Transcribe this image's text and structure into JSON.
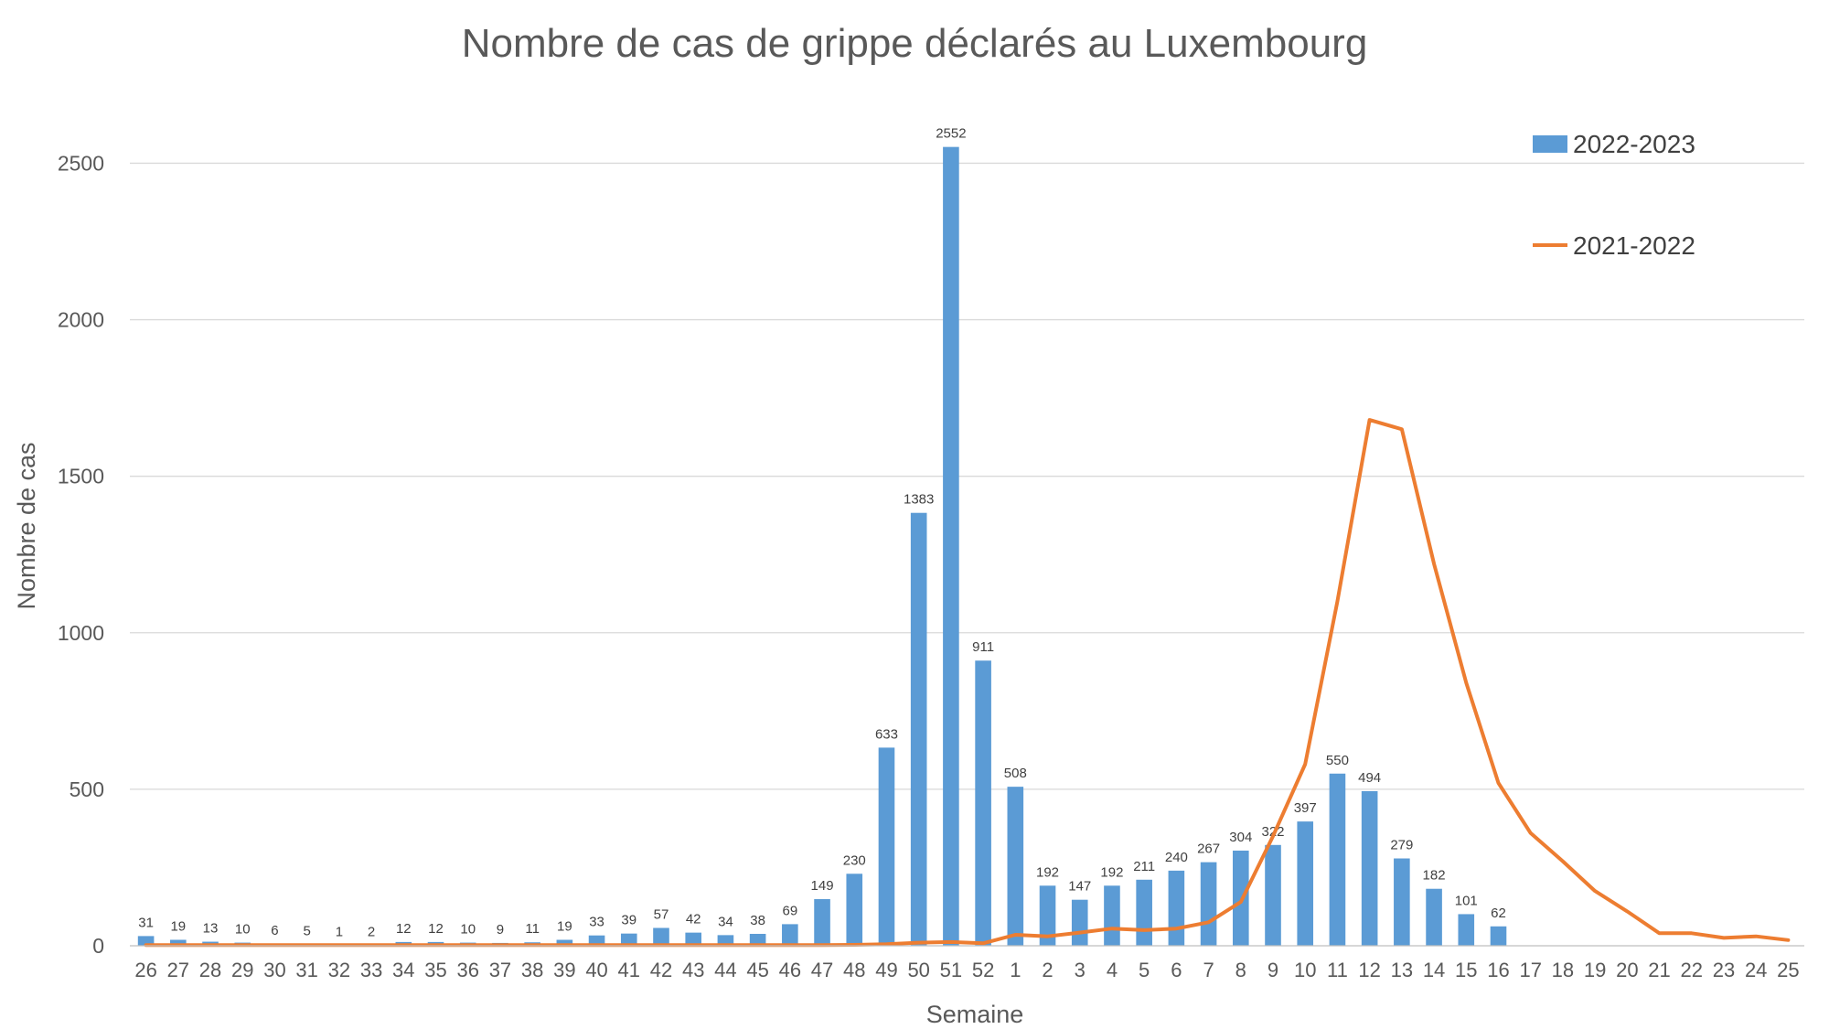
{
  "chart_data": {
    "type": "bar",
    "title": "Nombre de cas de grippe déclarés au Luxembourg",
    "xlabel": "Semaine",
    "ylabel": "Nombre de cas",
    "ylim": [
      0,
      2700
    ],
    "yticks": [
      0,
      500,
      1000,
      1500,
      2000,
      2500
    ],
    "grid": true,
    "legend_position": "top-right",
    "categories": [
      "26",
      "27",
      "28",
      "29",
      "30",
      "31",
      "32",
      "33",
      "34",
      "35",
      "36",
      "37",
      "38",
      "39",
      "40",
      "41",
      "42",
      "43",
      "44",
      "45",
      "46",
      "47",
      "48",
      "49",
      "50",
      "51",
      "52",
      "1",
      "2",
      "3",
      "4",
      "5",
      "6",
      "7",
      "8",
      "9",
      "10",
      "11",
      "12",
      "13",
      "14",
      "15",
      "16",
      "17",
      "18",
      "19",
      "20",
      "21",
      "22",
      "23",
      "24",
      "25"
    ],
    "series": [
      {
        "name": "2022-2023",
        "type": "bar",
        "color": "#5b9bd5",
        "data_labels": true,
        "values": [
          31,
          19,
          13,
          10,
          6,
          5,
          1,
          2,
          12,
          12,
          10,
          9,
          11,
          19,
          33,
          39,
          57,
          42,
          34,
          38,
          69,
          149,
          230,
          633,
          1383,
          2552,
          911,
          508,
          192,
          147,
          192,
          211,
          240,
          267,
          304,
          322,
          397,
          550,
          494,
          279,
          182,
          101,
          62,
          null,
          null,
          null,
          null,
          null,
          null,
          null,
          null,
          null
        ]
      },
      {
        "name": "2021-2022",
        "type": "line",
        "color": "#ed7d31",
        "data_labels": false,
        "values": [
          2,
          2,
          2,
          2,
          2,
          2,
          2,
          2,
          2,
          2,
          2,
          2,
          2,
          2,
          2,
          2,
          2,
          2,
          2,
          2,
          2,
          2,
          3,
          5,
          10,
          12,
          8,
          35,
          30,
          42,
          55,
          50,
          55,
          75,
          140,
          350,
          580,
          1100,
          1680,
          1650,
          1220,
          840,
          520,
          360,
          270,
          175,
          110,
          40,
          40,
          25,
          30,
          18
        ]
      }
    ]
  }
}
